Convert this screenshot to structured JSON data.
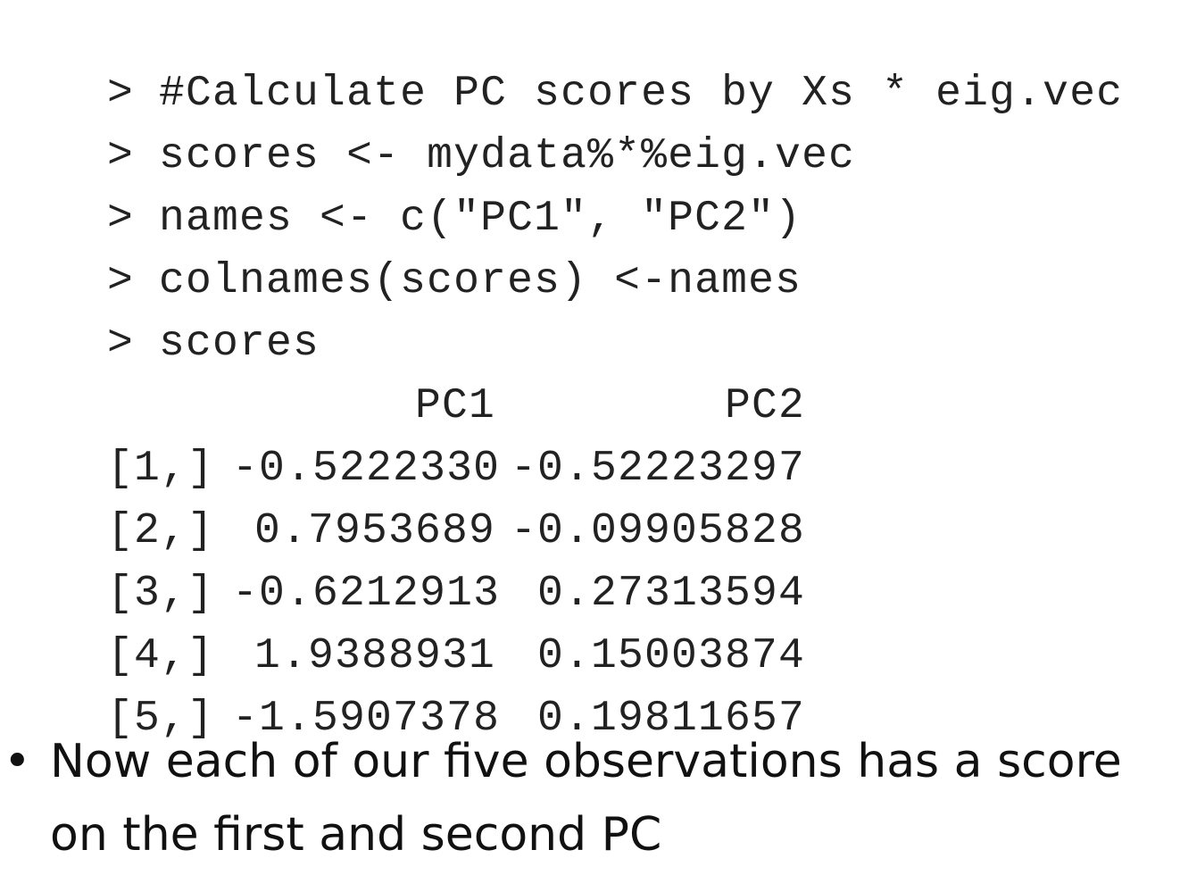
{
  "commands": [
    {
      "prompt": ">",
      "text": "#Calculate PC scores by Xs * eig.vec"
    },
    {
      "prompt": ">",
      "text": "scores <- mydata%*%eig.vec"
    },
    {
      "prompt": ">",
      "text": "names <- c(\"PC1\", \"PC2\")"
    },
    {
      "prompt": ">",
      "text": "colnames(scores) <-names"
    },
    {
      "prompt": ">",
      "text": "scores"
    }
  ],
  "table": {
    "headers": [
      "PC1",
      "PC2"
    ],
    "rows": [
      {
        "index": "[1,]",
        "pc1": "-0.5222330",
        "pc2": "-0.52223297"
      },
      {
        "index": "[2,]",
        "pc1": "0.7953689",
        "pc2": "-0.09905828"
      },
      {
        "index": "[3,]",
        "pc1": "-0.6212913",
        "pc2": "0.27313594"
      },
      {
        "index": "[4,]",
        "pc1": "1.9388931",
        "pc2": "0.15003874"
      },
      {
        "index": "[5,]",
        "pc1": "-1.5907378",
        "pc2": "0.19811657"
      }
    ]
  },
  "bullet": {
    "symbol": "•",
    "text": "Now each of our five observations has a score on the first and second PC"
  }
}
